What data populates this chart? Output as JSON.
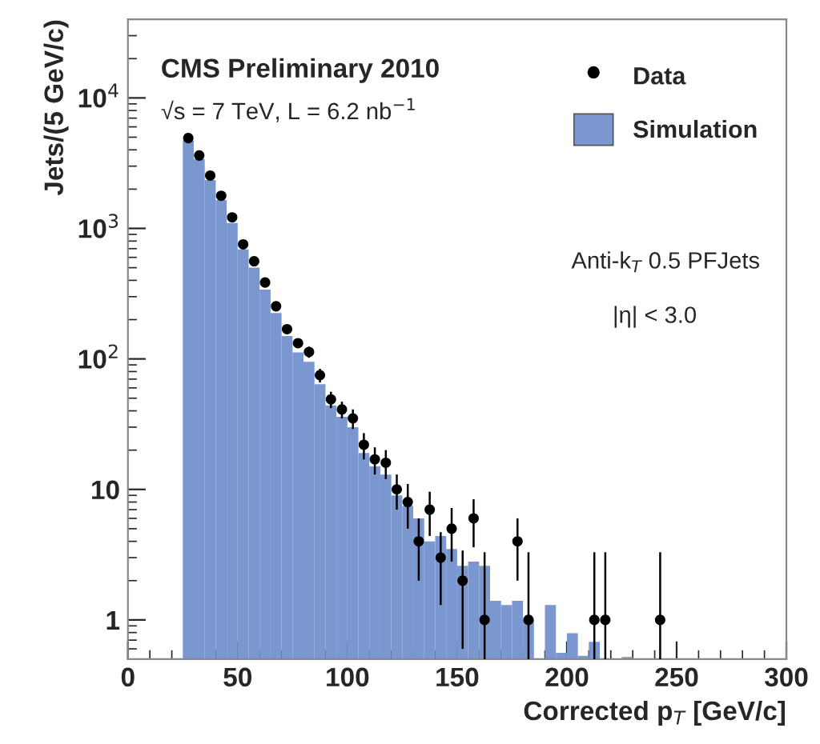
{
  "chart_data": {
    "type": "histogram",
    "annotations": [
      "CMS Preliminary 2010",
      "√s = 7 TeV, L = 6.2 nb$^{−1}$",
      "Anti-k$_{T}$ 0.5 PFJets",
      "|η| < 3.0"
    ],
    "xlabel": "Corrected p$_{T}$ [GeV/c]",
    "ylabel": "Jets/(5 GeV/c)",
    "bins": [
      25,
      30,
      35,
      40,
      45,
      50,
      55,
      60,
      65,
      70,
      75,
      80,
      85,
      90,
      95,
      100,
      105,
      110,
      115,
      120,
      125,
      130,
      135,
      140,
      145,
      150,
      155,
      160,
      165,
      170,
      175,
      180,
      185,
      190,
      195,
      200,
      205,
      210,
      215,
      220,
      225,
      230,
      235,
      240,
      245,
      250
    ],
    "series": [
      {
        "name": "Simulation",
        "color": "#7b97d0",
        "values": [
          4700,
          3400,
          2350,
          1650,
          1100,
          690,
          500,
          340,
          225,
          150,
          112,
          95,
          64,
          44,
          36,
          30,
          19,
          15,
          13,
          9,
          7.5,
          6.0,
          4.0,
          4.4,
          3.5,
          2.6,
          2.8,
          2.6,
          1.4,
          1.3,
          1.4,
          1.0,
          null,
          1.3,
          0.56,
          0.79,
          0.53,
          0.68,
          null,
          null,
          0.52,
          null,
          null,
          null,
          null
        ]
      },
      {
        "name": "Data",
        "type": "scatter",
        "color": "#000000",
        "marker": "circle",
        "x": [
          27.5,
          32.5,
          37.5,
          42.5,
          47.5,
          52.5,
          57.5,
          62.5,
          67.5,
          72.5,
          77.5,
          82.5,
          87.5,
          92.5,
          97.5,
          102.5,
          107.5,
          112.5,
          117.5,
          122.5,
          127.5,
          132.5,
          137.5,
          142.5,
          147.5,
          152.5,
          157.5,
          162.5,
          177.5,
          182.5,
          212.5,
          217.5,
          242.5
        ],
        "values": [
          4920,
          3620,
          2540,
          1780,
          1215,
          755,
          560,
          385,
          253,
          169,
          132,
          113,
          75,
          49,
          41,
          35,
          22,
          17,
          16,
          10,
          8,
          4,
          7,
          3,
          5,
          2,
          6,
          1,
          4,
          1,
          1,
          1,
          1
        ],
        "errors": [
          70,
          60,
          50,
          42,
          35,
          27,
          24,
          20,
          16,
          13,
          11,
          11,
          9,
          7,
          6,
          6,
          5,
          4,
          4,
          3,
          3,
          2,
          2.6,
          1.7,
          2.2,
          1.4,
          2.4,
          [
            0.5,
            3.3
          ],
          2,
          [
            0.5,
            3.3
          ],
          [
            0.5,
            3.3
          ],
          [
            0.5,
            3.3
          ],
          [
            0.5,
            3.3
          ]
        ]
      }
    ],
    "xlim": [
      0,
      300
    ],
    "xticks": [
      0,
      50,
      100,
      150,
      200,
      250,
      300
    ],
    "ylim": [
      0.5,
      40000
    ],
    "log": "y",
    "yticks": [
      1,
      10,
      {
        "value": 100,
        "label": "10$^{2}$"
      },
      {
        "value": 1000,
        "label": "10$^{3}$"
      },
      {
        "value": 10000,
        "label": "10$^{4}$"
      }
    ],
    "grid": false,
    "legend": "top right"
  }
}
